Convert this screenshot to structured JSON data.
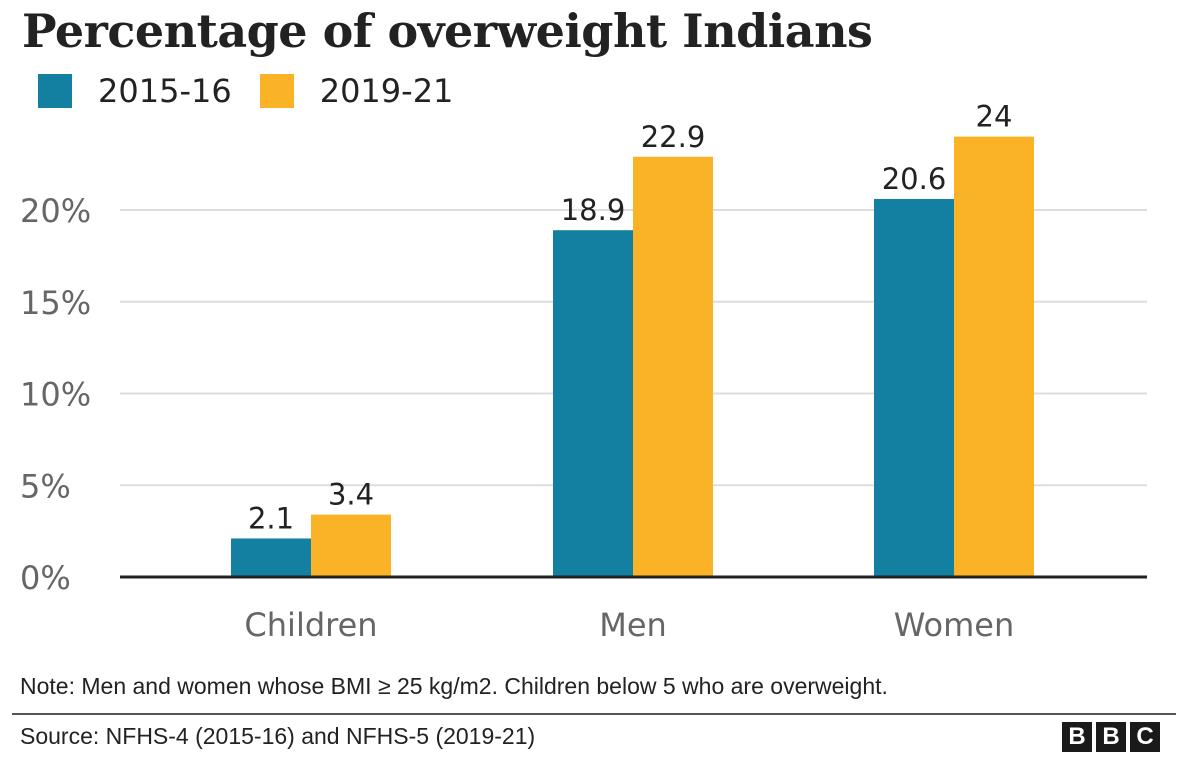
{
  "chart_data": {
    "type": "bar",
    "title": "Percentage of overweight Indians",
    "categories": [
      "Children",
      "Men",
      "Women"
    ],
    "series": [
      {
        "name": "2015-16",
        "color": "#1380a1",
        "values": [
          2.1,
          18.9,
          20.6
        ],
        "labels": [
          "2.1",
          "18.9",
          "20.6"
        ]
      },
      {
        "name": "2019-21",
        "color": "#fab227",
        "values": [
          3.4,
          22.9,
          24
        ],
        "labels": [
          "3.4",
          "22.9",
          "24"
        ]
      }
    ],
    "yticks": [
      0,
      5,
      10,
      15,
      20
    ],
    "ytick_labels": [
      "0%",
      "5%",
      "10%",
      "15%",
      "20%"
    ],
    "ylim": [
      0,
      24
    ],
    "xlabel": "",
    "ylabel": "",
    "grid": true,
    "legend_position": "top-left"
  },
  "note": "Note: Men and women whose BMI ≥ 25 kg/m2. Children below 5 who are overweight.",
  "source": "Source: NFHS-4 (2015-16) and NFHS-5 (2019-21)",
  "logo": {
    "letters": [
      "B",
      "B",
      "C"
    ]
  }
}
